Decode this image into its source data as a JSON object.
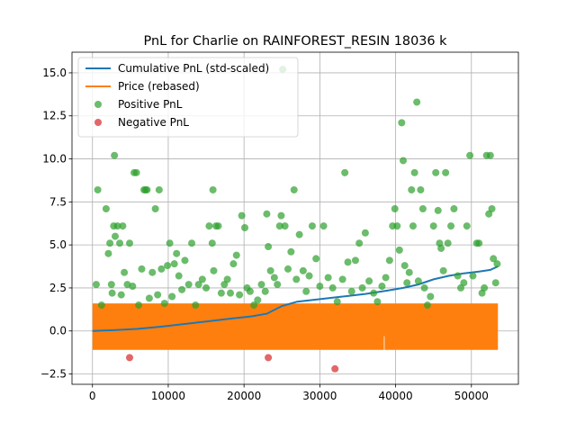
{
  "chart_data": {
    "type": "scatter",
    "title": "PnL for Charlie on RAINFOREST_RESIN 18036 k",
    "xlabel": "",
    "ylabel": "",
    "xlim": [
      -2700,
      56200
    ],
    "ylim": [
      -3.1,
      16.2
    ],
    "grid": true,
    "legend_position": "top-left",
    "x_ticks": [
      0,
      10000,
      20000,
      30000,
      40000,
      50000
    ],
    "y_ticks": [
      -2.5,
      0.0,
      2.5,
      5.0,
      7.5,
      10.0,
      12.5,
      15.0
    ],
    "x_tick_labels": [
      "0",
      "10000",
      "20000",
      "30000",
      "40000",
      "50000"
    ],
    "y_tick_labels": [
      "−2.5",
      "0.0",
      "2.5",
      "5.0",
      "7.5",
      "10.0",
      "12.5",
      "15.0"
    ],
    "legend": [
      {
        "label": "Cumulative PnL (std-scaled)",
        "kind": "line",
        "color": "#1f77b4"
      },
      {
        "label": "Price (rebased)",
        "kind": "line",
        "color": "#ff7f0e"
      },
      {
        "label": "Positive PnL",
        "kind": "marker",
        "color": "#2ca02c"
      },
      {
        "label": "Negative PnL",
        "kind": "marker",
        "color": "#d62728"
      }
    ],
    "series": [
      {
        "name": "Cumulative PnL (std-scaled)",
        "type": "line",
        "color": "#1f77b4",
        "points": [
          [
            0,
            0
          ],
          [
            3000,
            0.05
          ],
          [
            6000,
            0.12
          ],
          [
            9000,
            0.25
          ],
          [
            12000,
            0.4
          ],
          [
            15000,
            0.55
          ],
          [
            18000,
            0.7
          ],
          [
            21000,
            0.85
          ],
          [
            23000,
            1.0
          ],
          [
            25000,
            1.45
          ],
          [
            27000,
            1.7
          ],
          [
            30000,
            1.85
          ],
          [
            33000,
            2.0
          ],
          [
            36000,
            2.15
          ],
          [
            39000,
            2.35
          ],
          [
            41000,
            2.5
          ],
          [
            43000,
            2.7
          ],
          [
            45000,
            3.0
          ],
          [
            47000,
            3.2
          ],
          [
            49000,
            3.35
          ],
          [
            51000,
            3.45
          ],
          [
            52500,
            3.55
          ],
          [
            53500,
            3.75
          ]
        ]
      },
      {
        "name": "Price (rebased)",
        "type": "band",
        "color": "#ff7f0e",
        "x_range": [
          0,
          53500
        ],
        "y_range": [
          -1.1,
          1.6
        ]
      },
      {
        "name": "Positive PnL",
        "type": "scatter",
        "color": "#2ca02c",
        "points": [
          [
            500,
            2.7
          ],
          [
            700,
            8.2
          ],
          [
            1200,
            1.5
          ],
          [
            1800,
            7.1
          ],
          [
            2100,
            4.5
          ],
          [
            2300,
            5.1
          ],
          [
            2500,
            2.7
          ],
          [
            2600,
            2.2
          ],
          [
            2800,
            6.1
          ],
          [
            2900,
            10.2
          ],
          [
            3000,
            5.5
          ],
          [
            3300,
            6.1
          ],
          [
            3600,
            5.1
          ],
          [
            3800,
            2.1
          ],
          [
            4000,
            6.1
          ],
          [
            4200,
            3.4
          ],
          [
            4600,
            2.7
          ],
          [
            4900,
            5.1
          ],
          [
            5300,
            2.6
          ],
          [
            5500,
            9.2
          ],
          [
            5800,
            9.2
          ],
          [
            6100,
            1.5
          ],
          [
            6500,
            3.6
          ],
          [
            6800,
            8.2
          ],
          [
            7000,
            8.2
          ],
          [
            7200,
            8.2
          ],
          [
            7500,
            1.9
          ],
          [
            7900,
            3.4
          ],
          [
            8300,
            7.1
          ],
          [
            8600,
            2.1
          ],
          [
            8800,
            8.2
          ],
          [
            9100,
            3.6
          ],
          [
            9500,
            1.6
          ],
          [
            9900,
            3.8
          ],
          [
            10200,
            5.1
          ],
          [
            10500,
            2.0
          ],
          [
            10800,
            3.9
          ],
          [
            11100,
            4.5
          ],
          [
            11400,
            3.2
          ],
          [
            11800,
            2.4
          ],
          [
            12200,
            4.1
          ],
          [
            12700,
            2.7
          ],
          [
            13100,
            5.1
          ],
          [
            13600,
            1.5
          ],
          [
            14000,
            2.7
          ],
          [
            14500,
            3.0
          ],
          [
            15000,
            2.5
          ],
          [
            15400,
            6.1
          ],
          [
            15800,
            5.1
          ],
          [
            15900,
            8.2
          ],
          [
            16000,
            3.5
          ],
          [
            16300,
            6.1
          ],
          [
            16600,
            6.1
          ],
          [
            17000,
            2.2
          ],
          [
            17400,
            2.7
          ],
          [
            17800,
            3.0
          ],
          [
            18200,
            2.2
          ],
          [
            18600,
            3.9
          ],
          [
            19000,
            4.4
          ],
          [
            19400,
            2.1
          ],
          [
            19700,
            6.7
          ],
          [
            20100,
            6.0
          ],
          [
            20400,
            2.5
          ],
          [
            20800,
            2.3
          ],
          [
            21300,
            1.5
          ],
          [
            21800,
            1.8
          ],
          [
            22300,
            2.7
          ],
          [
            22800,
            2.3
          ],
          [
            23000,
            6.8
          ],
          [
            23200,
            4.9
          ],
          [
            23500,
            3.5
          ],
          [
            24000,
            3.1
          ],
          [
            24400,
            2.7
          ],
          [
            24700,
            6.1
          ],
          [
            24900,
            6.7
          ],
          [
            25100,
            15.2
          ],
          [
            25400,
            6.1
          ],
          [
            25800,
            3.6
          ],
          [
            26200,
            4.6
          ],
          [
            26600,
            8.2
          ],
          [
            26900,
            3.0
          ],
          [
            27300,
            5.6
          ],
          [
            27800,
            3.5
          ],
          [
            28200,
            2.3
          ],
          [
            28600,
            3.2
          ],
          [
            29000,
            6.1
          ],
          [
            29500,
            4.2
          ],
          [
            30000,
            2.6
          ],
          [
            30500,
            6.1
          ],
          [
            31100,
            3.1
          ],
          [
            31700,
            2.5
          ],
          [
            32300,
            1.7
          ],
          [
            33000,
            3.0
          ],
          [
            33300,
            9.2
          ],
          [
            33700,
            4.0
          ],
          [
            34200,
            2.3
          ],
          [
            34700,
            4.1
          ],
          [
            35200,
            5.1
          ],
          [
            35600,
            2.5
          ],
          [
            36000,
            5.7
          ],
          [
            36500,
            2.9
          ],
          [
            37100,
            2.2
          ],
          [
            37600,
            1.7
          ],
          [
            38200,
            2.6
          ],
          [
            38700,
            3.1
          ],
          [
            39200,
            4.1
          ],
          [
            39600,
            6.1
          ],
          [
            39900,
            7.1
          ],
          [
            40200,
            6.1
          ],
          [
            40500,
            4.7
          ],
          [
            40800,
            12.1
          ],
          [
            41000,
            9.9
          ],
          [
            41200,
            3.8
          ],
          [
            41500,
            2.8
          ],
          [
            41800,
            3.4
          ],
          [
            42100,
            8.2
          ],
          [
            42300,
            6.1
          ],
          [
            42500,
            9.2
          ],
          [
            42800,
            13.3
          ],
          [
            43000,
            2.9
          ],
          [
            43300,
            8.2
          ],
          [
            43600,
            7.1
          ],
          [
            43800,
            2.5
          ],
          [
            44200,
            1.5
          ],
          [
            44600,
            2.0
          ],
          [
            45000,
            6.1
          ],
          [
            45300,
            9.2
          ],
          [
            45600,
            7.0
          ],
          [
            45800,
            5.1
          ],
          [
            46000,
            4.8
          ],
          [
            46300,
            3.5
          ],
          [
            46600,
            9.2
          ],
          [
            46900,
            5.1
          ],
          [
            47300,
            6.1
          ],
          [
            47700,
            7.1
          ],
          [
            48200,
            3.2
          ],
          [
            48600,
            2.5
          ],
          [
            49000,
            2.8
          ],
          [
            49400,
            6.1
          ],
          [
            49800,
            10.2
          ],
          [
            50200,
            3.2
          ],
          [
            50700,
            5.1
          ],
          [
            51000,
            5.1
          ],
          [
            51400,
            2.2
          ],
          [
            51700,
            2.5
          ],
          [
            52000,
            10.2
          ],
          [
            52300,
            6.8
          ],
          [
            52500,
            10.2
          ],
          [
            52700,
            7.1
          ],
          [
            52900,
            4.2
          ],
          [
            53200,
            2.8
          ],
          [
            53400,
            3.9
          ]
        ]
      },
      {
        "name": "Negative PnL",
        "type": "scatter",
        "color": "#d62728",
        "points": [
          [
            4900,
            -1.55
          ],
          [
            23200,
            -1.55
          ],
          [
            32000,
            -2.2
          ]
        ]
      }
    ]
  }
}
